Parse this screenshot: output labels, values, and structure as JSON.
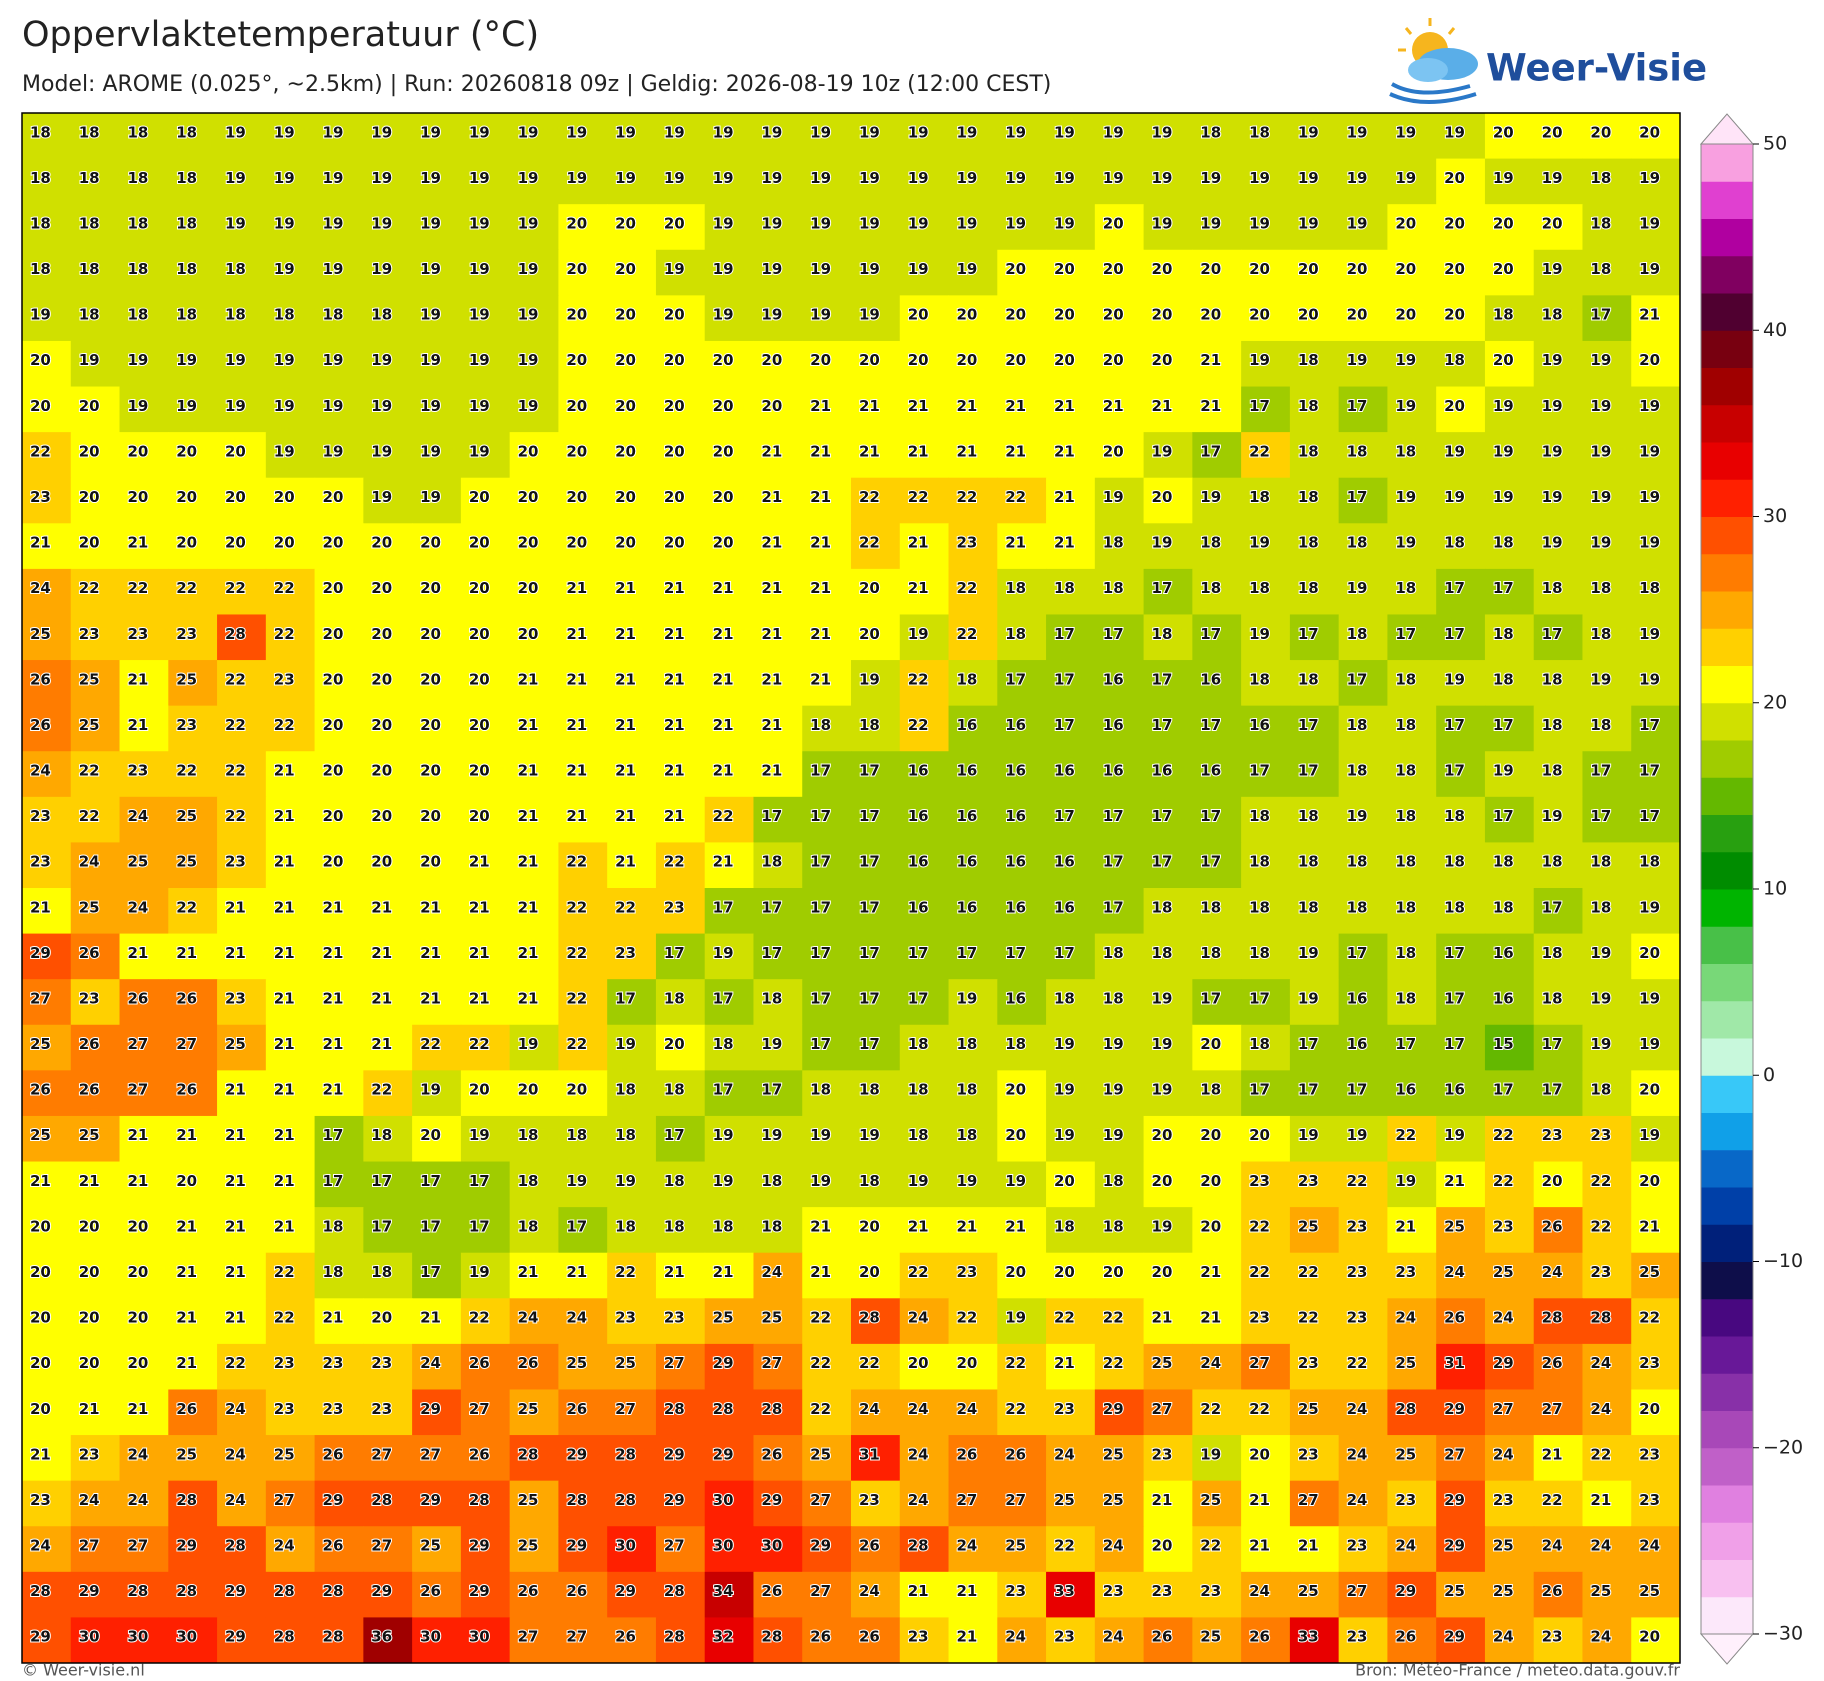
{
  "header": {
    "title": "Oppervlaktetemperatuur (°C)",
    "subtitle": "Model: AROME (0.025°, ~2.5km)  |  Run: 20260818 09z  |  Geldig: 2026-08-19 10z (12:00 CEST)"
  },
  "logo": {
    "text": "Weer-Visie"
  },
  "map": {
    "values": [
      [
        18,
        18,
        18,
        18,
        19,
        19,
        19,
        19,
        19,
        19,
        19,
        19,
        19,
        19,
        19,
        19,
        19,
        19,
        19,
        19,
        19,
        19,
        19,
        19,
        18,
        18,
        19,
        19,
        19,
        19,
        20,
        20,
        20,
        20
      ],
      [
        18,
        18,
        18,
        18,
        19,
        19,
        19,
        19,
        19,
        19,
        19,
        19,
        19,
        19,
        19,
        19,
        19,
        19,
        19,
        19,
        19,
        19,
        19,
        19,
        19,
        19,
        19,
        19,
        19,
        20,
        19,
        19,
        18,
        19
      ],
      [
        18,
        18,
        18,
        18,
        19,
        19,
        19,
        19,
        19,
        19,
        19,
        20,
        20,
        20,
        19,
        19,
        19,
        19,
        19,
        19,
        19,
        19,
        20,
        19,
        19,
        19,
        19,
        19,
        20,
        20,
        20,
        20,
        18,
        19
      ],
      [
        18,
        18,
        18,
        18,
        18,
        19,
        19,
        19,
        19,
        19,
        19,
        20,
        20,
        19,
        19,
        19,
        19,
        19,
        19,
        19,
        20,
        20,
        20,
        20,
        20,
        20,
        20,
        20,
        20,
        20,
        20,
        19,
        18,
        19
      ],
      [
        19,
        18,
        18,
        18,
        18,
        18,
        18,
        18,
        19,
        19,
        19,
        20,
        20,
        20,
        19,
        19,
        19,
        19,
        20,
        20,
        20,
        20,
        20,
        20,
        20,
        20,
        20,
        20,
        20,
        20,
        18,
        18,
        17,
        21
      ],
      [
        20,
        19,
        19,
        19,
        19,
        19,
        19,
        19,
        19,
        19,
        19,
        20,
        20,
        20,
        20,
        20,
        20,
        20,
        20,
        20,
        20,
        20,
        20,
        20,
        21,
        19,
        18,
        19,
        19,
        18,
        20,
        19,
        19,
        20
      ],
      [
        20,
        20,
        19,
        19,
        19,
        19,
        19,
        19,
        19,
        19,
        19,
        20,
        20,
        20,
        20,
        20,
        21,
        21,
        21,
        21,
        21,
        21,
        21,
        21,
        21,
        17,
        18,
        17,
        19,
        20,
        19,
        19,
        19,
        19
      ],
      [
        22,
        20,
        20,
        20,
        20,
        19,
        19,
        19,
        19,
        19,
        20,
        20,
        20,
        20,
        20,
        21,
        21,
        21,
        21,
        21,
        21,
        21,
        20,
        19,
        17,
        22,
        18,
        18,
        18,
        19,
        19,
        19,
        19,
        19
      ],
      [
        23,
        20,
        20,
        20,
        20,
        20,
        20,
        19,
        19,
        20,
        20,
        20,
        20,
        20,
        20,
        21,
        21,
        22,
        22,
        22,
        22,
        21,
        19,
        20,
        19,
        18,
        18,
        17,
        19,
        19,
        19,
        19,
        19,
        19
      ],
      [
        21,
        20,
        21,
        20,
        20,
        20,
        20,
        20,
        20,
        20,
        20,
        20,
        20,
        20,
        20,
        21,
        21,
        22,
        21,
        23,
        21,
        21,
        18,
        19,
        18,
        19,
        18,
        18,
        19,
        18,
        18,
        19,
        19,
        19
      ],
      [
        24,
        22,
        22,
        22,
        22,
        22,
        20,
        20,
        20,
        20,
        20,
        21,
        21,
        21,
        21,
        21,
        21,
        20,
        21,
        22,
        18,
        18,
        18,
        17,
        18,
        18,
        18,
        19,
        18,
        17,
        17,
        18,
        18,
        18
      ],
      [
        25,
        23,
        23,
        23,
        28,
        22,
        20,
        20,
        20,
        20,
        20,
        21,
        21,
        21,
        21,
        21,
        21,
        20,
        19,
        22,
        18,
        17,
        17,
        18,
        17,
        19,
        17,
        18,
        17,
        17,
        18,
        17,
        18,
        19
      ],
      [
        26,
        25,
        21,
        25,
        22,
        23,
        20,
        20,
        20,
        20,
        21,
        21,
        21,
        21,
        21,
        21,
        21,
        19,
        22,
        18,
        17,
        17,
        16,
        17,
        16,
        18,
        18,
        17,
        18,
        19,
        18,
        18,
        19,
        19
      ],
      [
        26,
        25,
        21,
        23,
        22,
        22,
        20,
        20,
        20,
        20,
        21,
        21,
        21,
        21,
        21,
        21,
        18,
        18,
        22,
        16,
        16,
        17,
        16,
        17,
        17,
        16,
        17,
        18,
        18,
        17,
        17,
        18,
        18,
        17
      ],
      [
        24,
        22,
        23,
        22,
        22,
        21,
        20,
        20,
        20,
        20,
        21,
        21,
        21,
        21,
        21,
        21,
        17,
        17,
        16,
        16,
        16,
        16,
        16,
        16,
        16,
        17,
        17,
        18,
        18,
        17,
        19,
        18,
        17,
        17
      ],
      [
        23,
        22,
        24,
        25,
        22,
        21,
        20,
        20,
        20,
        20,
        21,
        21,
        21,
        21,
        22,
        17,
        17,
        17,
        16,
        16,
        16,
        17,
        17,
        17,
        17,
        18,
        18,
        19,
        18,
        18,
        17,
        19,
        17,
        17
      ],
      [
        23,
        24,
        25,
        25,
        23,
        21,
        20,
        20,
        20,
        21,
        21,
        22,
        21,
        22,
        21,
        18,
        17,
        17,
        16,
        16,
        16,
        16,
        17,
        17,
        17,
        18,
        18,
        18,
        18,
        18,
        18,
        18,
        18,
        18
      ],
      [
        21,
        25,
        24,
        22,
        21,
        21,
        21,
        21,
        21,
        21,
        21,
        22,
        22,
        23,
        17,
        17,
        17,
        17,
        16,
        16,
        16,
        16,
        17,
        18,
        18,
        18,
        18,
        18,
        18,
        18,
        18,
        17,
        18,
        19
      ],
      [
        29,
        26,
        21,
        21,
        21,
        21,
        21,
        21,
        21,
        21,
        21,
        22,
        23,
        17,
        19,
        17,
        17,
        17,
        17,
        17,
        17,
        17,
        18,
        18,
        18,
        18,
        19,
        17,
        18,
        17,
        16,
        18,
        19,
        20
      ],
      [
        27,
        23,
        26,
        26,
        23,
        21,
        21,
        21,
        21,
        21,
        21,
        22,
        17,
        18,
        17,
        18,
        17,
        17,
        17,
        19,
        16,
        18,
        18,
        19,
        17,
        17,
        19,
        16,
        18,
        17,
        16,
        18,
        19,
        19
      ],
      [
        25,
        26,
        27,
        27,
        25,
        21,
        21,
        21,
        22,
        22,
        19,
        22,
        19,
        20,
        18,
        19,
        17,
        17,
        18,
        18,
        18,
        19,
        19,
        19,
        20,
        18,
        17,
        16,
        17,
        17,
        15,
        17,
        19,
        19
      ],
      [
        26,
        26,
        27,
        26,
        21,
        21,
        21,
        22,
        19,
        20,
        20,
        20,
        18,
        18,
        17,
        17,
        18,
        18,
        18,
        18,
        20,
        19,
        19,
        19,
        18,
        17,
        17,
        17,
        16,
        16,
        17,
        17,
        18,
        20
      ],
      [
        25,
        25,
        21,
        21,
        21,
        21,
        17,
        18,
        20,
        19,
        18,
        18,
        18,
        17,
        19,
        19,
        19,
        19,
        18,
        18,
        20,
        19,
        19,
        20,
        20,
        20,
        19,
        19,
        22,
        19,
        22,
        23,
        23,
        19
      ],
      [
        21,
        21,
        21,
        20,
        21,
        21,
        17,
        17,
        17,
        17,
        18,
        19,
        19,
        18,
        19,
        18,
        19,
        18,
        19,
        19,
        19,
        20,
        18,
        20,
        20,
        23,
        23,
        22,
        19,
        21,
        22,
        20,
        22,
        20
      ],
      [
        20,
        20,
        20,
        21,
        21,
        21,
        18,
        17,
        17,
        17,
        18,
        17,
        18,
        18,
        18,
        18,
        21,
        20,
        21,
        21,
        21,
        18,
        18,
        19,
        20,
        22,
        25,
        23,
        21,
        25,
        23,
        26,
        22,
        21
      ],
      [
        20,
        20,
        20,
        21,
        21,
        22,
        18,
        18,
        17,
        19,
        21,
        21,
        22,
        21,
        21,
        24,
        21,
        20,
        22,
        23,
        20,
        20,
        20,
        20,
        21,
        22,
        22,
        23,
        23,
        24,
        25,
        24,
        23,
        25
      ],
      [
        20,
        20,
        20,
        21,
        21,
        22,
        21,
        20,
        21,
        22,
        24,
        24,
        23,
        23,
        25,
        25,
        22,
        28,
        24,
        22,
        19,
        22,
        22,
        21,
        21,
        23,
        22,
        23,
        24,
        26,
        24,
        28,
        28,
        22
      ],
      [
        20,
        20,
        20,
        21,
        22,
        23,
        23,
        23,
        24,
        26,
        26,
        25,
        25,
        27,
        29,
        27,
        22,
        22,
        20,
        20,
        22,
        21,
        22,
        25,
        24,
        27,
        23,
        22,
        25,
        31,
        29,
        26,
        24,
        23
      ],
      [
        20,
        21,
        21,
        26,
        24,
        23,
        23,
        23,
        29,
        27,
        25,
        26,
        27,
        28,
        28,
        28,
        22,
        24,
        24,
        24,
        22,
        23,
        29,
        27,
        22,
        22,
        25,
        24,
        28,
        29,
        27,
        27,
        24,
        20
      ],
      [
        21,
        23,
        24,
        25,
        24,
        25,
        26,
        27,
        27,
        26,
        28,
        29,
        28,
        29,
        29,
        26,
        25,
        31,
        24,
        26,
        26,
        24,
        25,
        23,
        19,
        20,
        23,
        24,
        25,
        27,
        24,
        21,
        22,
        23
      ],
      [
        23,
        24,
        24,
        28,
        24,
        27,
        29,
        28,
        29,
        28,
        25,
        28,
        28,
        29,
        30,
        29,
        27,
        23,
        24,
        27,
        27,
        25,
        25,
        21,
        25,
        21,
        27,
        24,
        23,
        29,
        23,
        22,
        21,
        23
      ],
      [
        24,
        27,
        27,
        29,
        28,
        24,
        26,
        27,
        25,
        29,
        25,
        29,
        30,
        27,
        30,
        30,
        29,
        26,
        28,
        24,
        25,
        22,
        24,
        20,
        22,
        21,
        21,
        23,
        24,
        29,
        25,
        24,
        24,
        24
      ],
      [
        28,
        29,
        28,
        28,
        29,
        28,
        28,
        29,
        26,
        29,
        26,
        26,
        29,
        28,
        34,
        26,
        27,
        24,
        21,
        21,
        23,
        33,
        23,
        23,
        23,
        24,
        25,
        27,
        29,
        25,
        25,
        26,
        25,
        25
      ],
      [
        29,
        30,
        30,
        30,
        29,
        28,
        28,
        36,
        30,
        30,
        27,
        27,
        26,
        28,
        32,
        28,
        26,
        26,
        23,
        21,
        24,
        23,
        24,
        26,
        25,
        26,
        33,
        23,
        26,
        29,
        24,
        23,
        24,
        20
      ]
    ],
    "colorbar": {
      "lim": [
        -30,
        50
      ],
      "ticks": [
        {
          "value": -30,
          "label": "−30"
        },
        {
          "value": -20,
          "label": "−20"
        },
        {
          "value": -10,
          "label": "−10"
        },
        0,
        10,
        20,
        30,
        40,
        50
      ],
      "colors": [
        "#fce8fa",
        "#f8c0f0",
        "#f0a0e8",
        "#e080e0",
        "#c060c8",
        "#a848b8",
        "#8830a8",
        "#681898",
        "#480880",
        "#0e0e4a",
        "#00207a",
        "#0040a8",
        "#0868c8",
        "#10a0e8",
        "#38c8f8",
        "#c8f8dc",
        "#a0e8a8",
        "#78d878",
        "#48c048",
        "#00b400",
        "#008c00",
        "#28a010",
        "#64b800",
        "#a0cc00",
        "#d0e000",
        "#ffff00",
        "#ffd000",
        "#ffa800",
        "#ff7c00",
        "#ff5000",
        "#ff2000",
        "#e80000",
        "#c80000",
        "#a00000",
        "#780010",
        "#500030",
        "#800060",
        "#b000a0",
        "#e040d0",
        "#f8a0e0"
      ],
      "under_color": "#fff0fc",
      "over_color": "#ffe4f8"
    }
  },
  "footer": {
    "left": "© Weer-visie.nl",
    "right": "Bron: Météo-France / meteo.data.gouv.fr"
  }
}
